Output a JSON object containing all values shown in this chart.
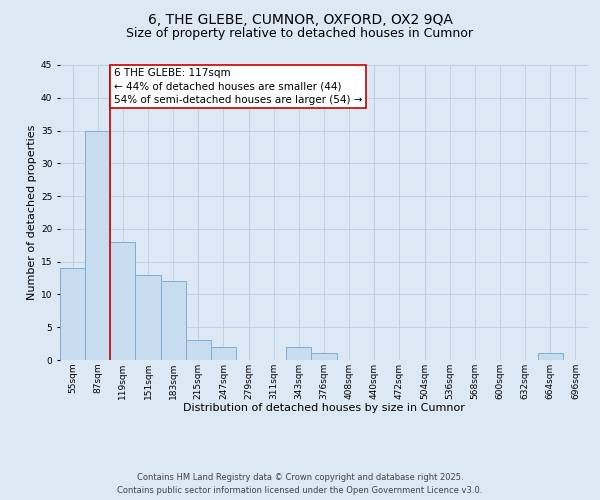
{
  "title": "6, THE GLEBE, CUMNOR, OXFORD, OX2 9QA",
  "subtitle": "Size of property relative to detached houses in Cumnor",
  "xlabel": "Distribution of detached houses by size in Cumnor",
  "ylabel": "Number of detached properties",
  "bin_labels": [
    "55sqm",
    "87sqm",
    "119sqm",
    "151sqm",
    "183sqm",
    "215sqm",
    "247sqm",
    "279sqm",
    "311sqm",
    "343sqm",
    "376sqm",
    "408sqm",
    "440sqm",
    "472sqm",
    "504sqm",
    "536sqm",
    "568sqm",
    "600sqm",
    "632sqm",
    "664sqm",
    "696sqm"
  ],
  "bar_values": [
    14,
    35,
    18,
    13,
    12,
    3,
    2,
    0,
    0,
    2,
    1,
    0,
    0,
    0,
    0,
    0,
    0,
    0,
    0,
    1,
    0
  ],
  "bar_color": "#c8dcf0",
  "bar_edge_color": "#7bafd4",
  "property_line_x": 2,
  "property_line_color": "#cc0000",
  "annotation_line1": "6 THE GLEBE: 117sqm",
  "annotation_line2": "← 44% of detached houses are smaller (44)",
  "annotation_line3": "54% of semi-detached houses are larger (54) →",
  "annotation_box_color": "#ffffff",
  "annotation_box_edge": "#cc0000",
  "ylim": [
    0,
    45
  ],
  "yticks": [
    0,
    5,
    10,
    15,
    20,
    25,
    30,
    35,
    40,
    45
  ],
  "grid_color": "#b8cfe0",
  "bg_color": "#dce8f4",
  "footer_line1": "Contains HM Land Registry data © Crown copyright and database right 2025.",
  "footer_line2": "Contains public sector information licensed under the Open Government Licence v3.0.",
  "title_fontsize": 10,
  "subtitle_fontsize": 9,
  "axis_label_fontsize": 8,
  "tick_fontsize": 6.5,
  "annotation_fontsize": 7.5,
  "footer_fontsize": 6
}
